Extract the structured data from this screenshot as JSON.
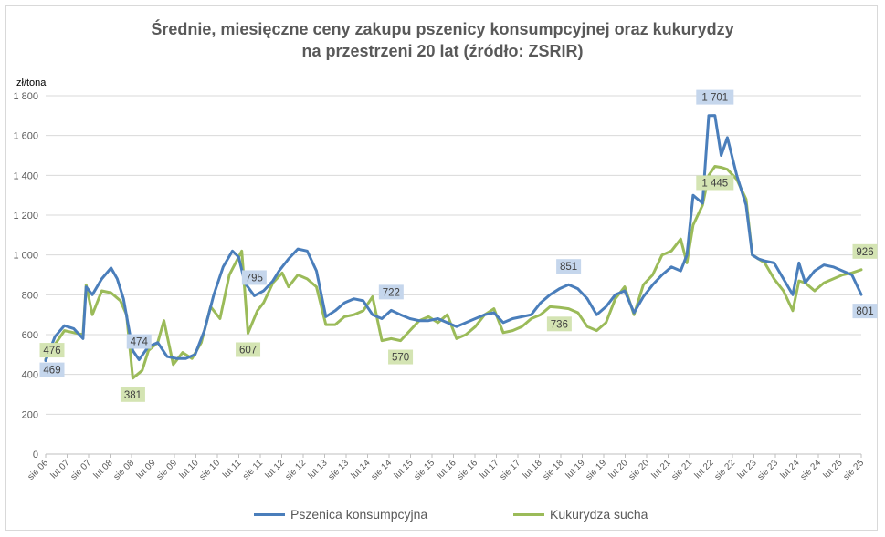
{
  "colors": {
    "wheat": "#4a7ebb",
    "corn": "#9bbb59",
    "wheat_label_bg": "#c5d6ec",
    "corn_label_bg": "#d4e4b3",
    "grid": "#d9d9d9"
  },
  "chart_data": {
    "type": "line",
    "title": "Średnie, miesięczne ceny zakupu pszenicy konsumpcyjnej oraz kukurydzy",
    "subtitle": "na przestrzeni 20 lat (źródło: ZSRIR)",
    "ylabel": "zł/tona",
    "ylim": [
      0,
      1800
    ],
    "yticks": [
      "0",
      "200",
      "400",
      "600",
      "800",
      "1 000",
      "1 200",
      "1 400",
      "1 600",
      "1 800"
    ],
    "xtick_labels": [
      "sie 06",
      "lut 07",
      "sie 07",
      "lut 08",
      "sie 08",
      "lut 09",
      "sie 09",
      "lut 10",
      "sie 10",
      "lut 11",
      "sie 11",
      "lut 12",
      "sie 12",
      "lut 13",
      "sie 13",
      "lut 14",
      "sie 14",
      "lut 15",
      "sie 15",
      "lut 16",
      "sie 16",
      "lut 17",
      "sie 17",
      "lut 18",
      "sie 18",
      "lut 19",
      "sie 19",
      "lut 20",
      "sie 20",
      "lut 21",
      "sie 21",
      "lut 22",
      "sie 22",
      "lut 23",
      "sie 23",
      "lut 24",
      "sie 24",
      "lut 25",
      "sie 25"
    ],
    "grid": "horizontal",
    "legend_position": "bottom",
    "series": [
      {
        "name": "Pszenica konsumpcyjna",
        "color": "#4a7ebb",
        "points": [
          [
            0,
            469
          ],
          [
            3,
            590
          ],
          [
            6,
            645
          ],
          [
            9,
            630
          ],
          [
            12,
            580
          ],
          [
            13,
            840
          ],
          [
            15,
            800
          ],
          [
            18,
            880
          ],
          [
            21,
            935
          ],
          [
            23,
            880
          ],
          [
            25,
            780
          ],
          [
            28,
            520
          ],
          [
            30,
            474
          ],
          [
            33,
            540
          ],
          [
            36,
            560
          ],
          [
            39,
            490
          ],
          [
            42,
            480
          ],
          [
            45,
            480
          ],
          [
            48,
            500
          ],
          [
            51,
            620
          ],
          [
            54,
            800
          ],
          [
            57,
            940
          ],
          [
            60,
            1020
          ],
          [
            62,
            990
          ],
          [
            64,
            860
          ],
          [
            67,
            795
          ],
          [
            70,
            820
          ],
          [
            73,
            870
          ],
          [
            75,
            920
          ],
          [
            78,
            980
          ],
          [
            81,
            1030
          ],
          [
            84,
            1020
          ],
          [
            87,
            920
          ],
          [
            90,
            690
          ],
          [
            93,
            720
          ],
          [
            96,
            760
          ],
          [
            99,
            780
          ],
          [
            102,
            770
          ],
          [
            105,
            700
          ],
          [
            108,
            680
          ],
          [
            111,
            722
          ],
          [
            114,
            700
          ],
          [
            117,
            680
          ],
          [
            120,
            670
          ],
          [
            123,
            670
          ],
          [
            126,
            680
          ],
          [
            129,
            660
          ],
          [
            132,
            640
          ],
          [
            135,
            660
          ],
          [
            138,
            680
          ],
          [
            141,
            700
          ],
          [
            144,
            710
          ],
          [
            147,
            660
          ],
          [
            150,
            680
          ],
          [
            153,
            690
          ],
          [
            156,
            700
          ],
          [
            159,
            760
          ],
          [
            162,
            800
          ],
          [
            165,
            830
          ],
          [
            168,
            851
          ],
          [
            171,
            830
          ],
          [
            174,
            780
          ],
          [
            177,
            700
          ],
          [
            180,
            740
          ],
          [
            183,
            800
          ],
          [
            186,
            820
          ],
          [
            189,
            710
          ],
          [
            192,
            790
          ],
          [
            195,
            850
          ],
          [
            198,
            900
          ],
          [
            201,
            940
          ],
          [
            204,
            920
          ],
          [
            206,
            1000
          ],
          [
            208,
            1300
          ],
          [
            211,
            1260
          ],
          [
            213,
            1700
          ],
          [
            215,
            1701
          ],
          [
            217,
            1500
          ],
          [
            219,
            1590
          ],
          [
            222,
            1400
          ],
          [
            225,
            1250
          ],
          [
            227,
            1000
          ],
          [
            229,
            980
          ],
          [
            231,
            970
          ],
          [
            234,
            960
          ],
          [
            237,
            880
          ],
          [
            240,
            800
          ],
          [
            242,
            960
          ],
          [
            244,
            860
          ],
          [
            247,
            920
          ],
          [
            250,
            950
          ],
          [
            253,
            940
          ],
          [
            256,
            920
          ],
          [
            259,
            900
          ],
          [
            262,
            801
          ]
        ]
      },
      {
        "name": "Kukurydza sucha",
        "color": "#9bbb59",
        "points": [
          [
            0,
            476
          ],
          [
            3,
            550
          ],
          [
            6,
            620
          ],
          [
            9,
            610
          ],
          [
            12,
            600
          ],
          [
            13,
            850
          ],
          [
            15,
            700
          ],
          [
            18,
            820
          ],
          [
            21,
            810
          ],
          [
            24,
            770
          ],
          [
            26,
            700
          ],
          [
            28,
            381
          ],
          [
            31,
            420
          ],
          [
            33,
            520
          ],
          [
            36,
            560
          ],
          [
            38,
            670
          ],
          [
            41,
            450
          ],
          [
            44,
            510
          ],
          [
            47,
            480
          ],
          [
            50,
            560
          ],
          [
            53,
            740
          ],
          [
            56,
            680
          ],
          [
            59,
            900
          ],
          [
            61,
            960
          ],
          [
            63,
            1020
          ],
          [
            65,
            607
          ],
          [
            68,
            720
          ],
          [
            70,
            760
          ],
          [
            73,
            860
          ],
          [
            76,
            910
          ],
          [
            78,
            840
          ],
          [
            81,
            900
          ],
          [
            84,
            880
          ],
          [
            87,
            840
          ],
          [
            90,
            650
          ],
          [
            93,
            650
          ],
          [
            96,
            690
          ],
          [
            99,
            700
          ],
          [
            102,
            720
          ],
          [
            105,
            790
          ],
          [
            108,
            570
          ],
          [
            111,
            580
          ],
          [
            114,
            570
          ],
          [
            117,
            620
          ],
          [
            120,
            670
          ],
          [
            123,
            690
          ],
          [
            126,
            660
          ],
          [
            129,
            700
          ],
          [
            132,
            580
          ],
          [
            135,
            600
          ],
          [
            138,
            640
          ],
          [
            141,
            700
          ],
          [
            144,
            730
          ],
          [
            147,
            610
          ],
          [
            150,
            620
          ],
          [
            153,
            640
          ],
          [
            156,
            680
          ],
          [
            159,
            700
          ],
          [
            162,
            740
          ],
          [
            165,
            736
          ],
          [
            168,
            730
          ],
          [
            171,
            710
          ],
          [
            174,
            640
          ],
          [
            177,
            620
          ],
          [
            180,
            660
          ],
          [
            183,
            780
          ],
          [
            186,
            840
          ],
          [
            189,
            700
          ],
          [
            192,
            850
          ],
          [
            195,
            900
          ],
          [
            198,
            1000
          ],
          [
            201,
            1020
          ],
          [
            204,
            1080
          ],
          [
            206,
            960
          ],
          [
            208,
            1150
          ],
          [
            211,
            1250
          ],
          [
            213,
            1400
          ],
          [
            215,
            1445
          ],
          [
            217,
            1440
          ],
          [
            219,
            1430
          ],
          [
            222,
            1380
          ],
          [
            225,
            1280
          ],
          [
            227,
            1000
          ],
          [
            229,
            980
          ],
          [
            231,
            960
          ],
          [
            234,
            880
          ],
          [
            237,
            820
          ],
          [
            240,
            720
          ],
          [
            242,
            870
          ],
          [
            244,
            860
          ],
          [
            247,
            820
          ],
          [
            250,
            860
          ],
          [
            253,
            880
          ],
          [
            256,
            900
          ],
          [
            259,
            910
          ],
          [
            262,
            926
          ]
        ]
      }
    ],
    "data_labels": [
      {
        "series": 0,
        "index": 0,
        "text": "469"
      },
      {
        "series": 1,
        "index": 0,
        "text": "476"
      },
      {
        "series": 0,
        "index": 30,
        "text": "474"
      },
      {
        "series": 1,
        "index": 28,
        "text": "381"
      },
      {
        "series": 0,
        "index": 67,
        "text": "795"
      },
      {
        "series": 1,
        "index": 65,
        "text": "607"
      },
      {
        "series": 0,
        "index": 111,
        "text": "722"
      },
      {
        "series": 1,
        "index": 114,
        "text": "570"
      },
      {
        "series": 0,
        "index": 168,
        "text": "851"
      },
      {
        "series": 1,
        "index": 165,
        "text": "736"
      },
      {
        "series": 0,
        "index": 215,
        "text": "1 701"
      },
      {
        "series": 1,
        "index": 215,
        "text": "1 445"
      },
      {
        "series": 0,
        "index": 262,
        "text": "801"
      },
      {
        "series": 1,
        "index": 262,
        "text": "926"
      }
    ]
  }
}
